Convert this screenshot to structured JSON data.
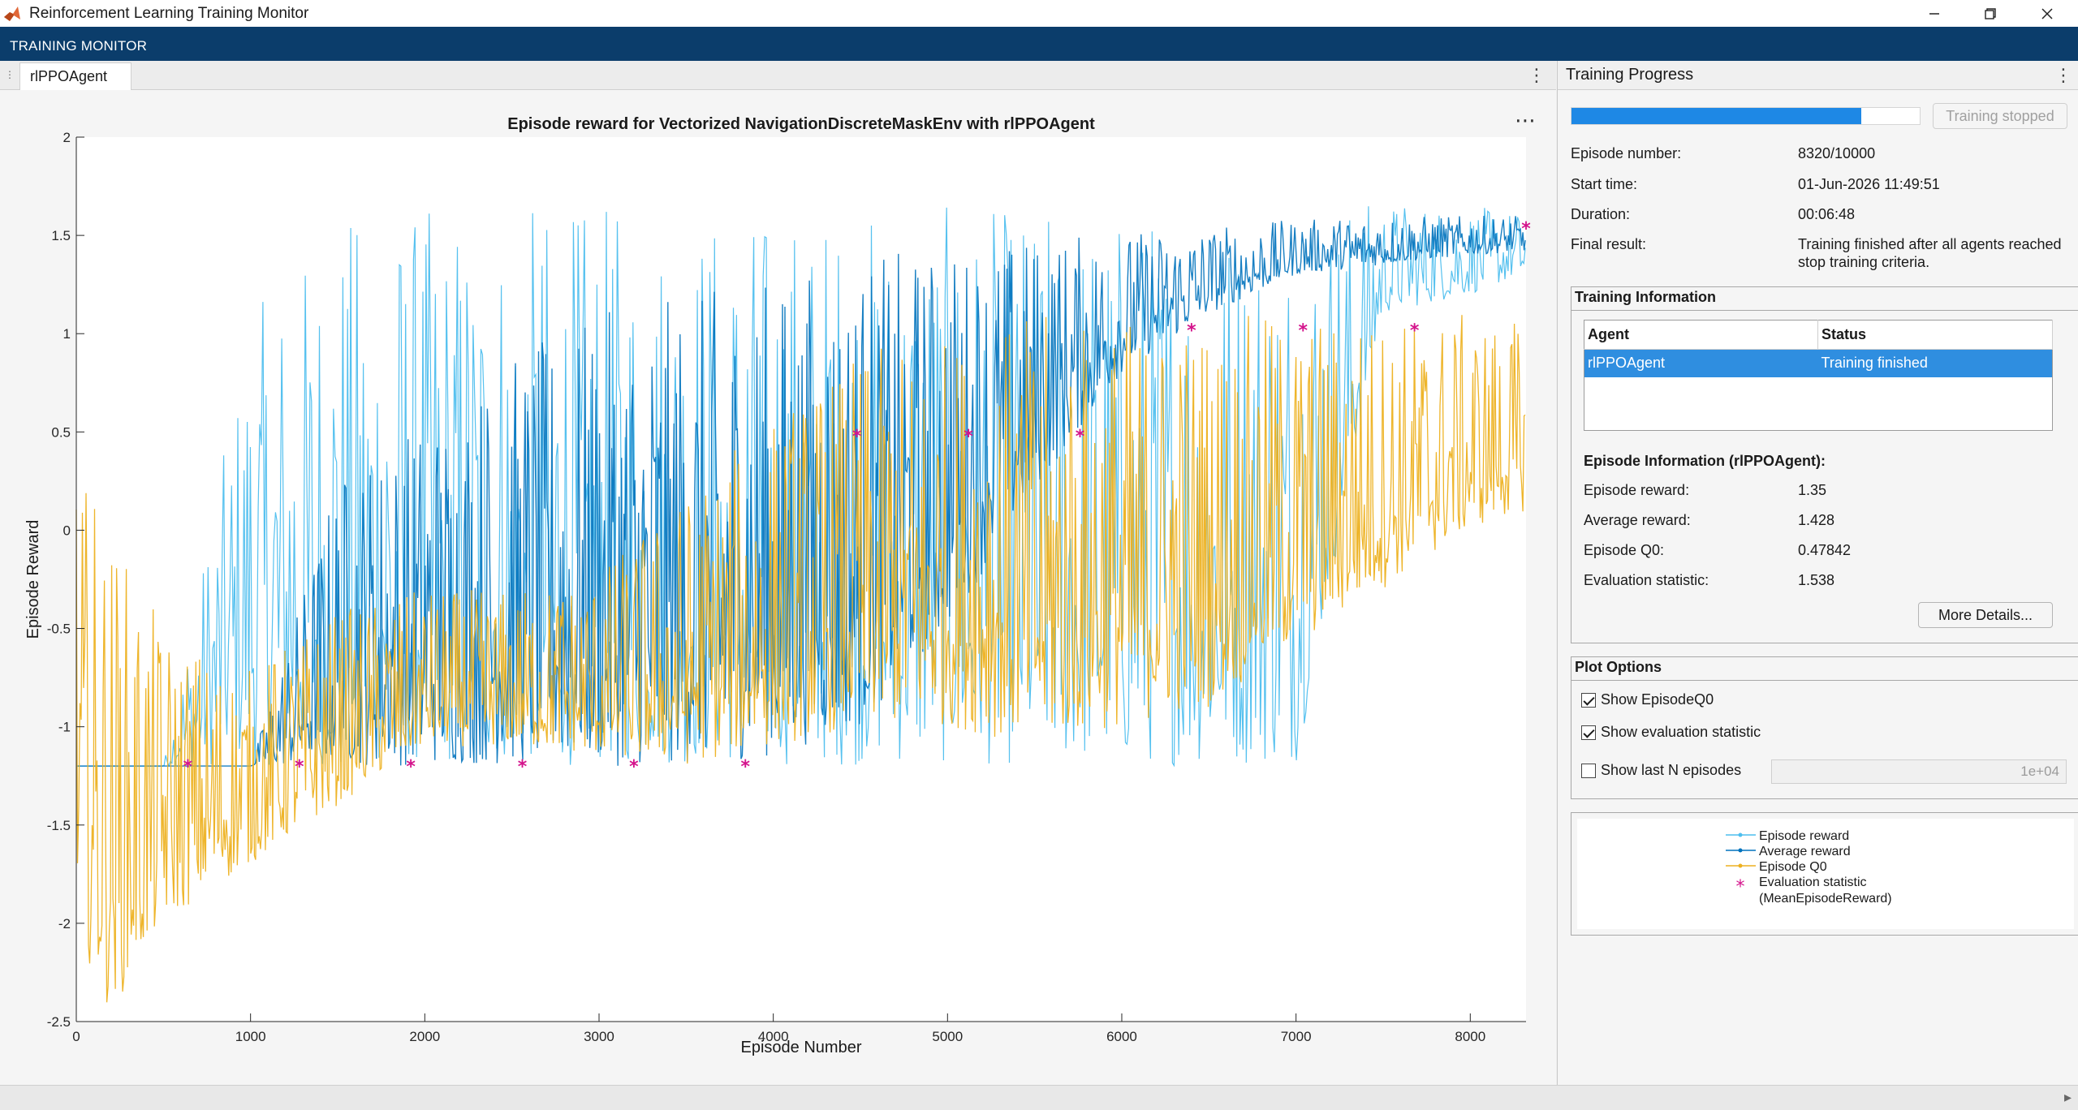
{
  "window": {
    "title": "Reinforcement Learning Training Monitor",
    "controls": [
      "minimize-icon",
      "restore-icon",
      "close-icon"
    ]
  },
  "toolstrip": {
    "tab_label": "TRAINING MONITOR"
  },
  "document": {
    "tab_label": "rlPPOAgent"
  },
  "chart_data": {
    "type": "line",
    "title": "Episode reward for Vectorized NavigationDiscreteMaskEnv with rlPPOAgent",
    "xlabel": "Episode Number",
    "ylabel": "Episode Reward",
    "xlim": [
      0,
      8320
    ],
    "ylim": [
      -2.5,
      2
    ],
    "xticks": [
      0,
      1000,
      2000,
      3000,
      4000,
      5000,
      6000,
      7000,
      8000
    ],
    "yticks": [
      -2.5,
      -2,
      -1.5,
      -1,
      -0.5,
      0,
      0.5,
      1,
      1.5,
      2
    ],
    "grid": false,
    "colors": {
      "episode_reward": "#4DBEEE",
      "average_reward": "#0072BD",
      "episode_q0": "#EDB120",
      "evaluation": "#D4148C"
    },
    "series": [
      {
        "name": "Episode reward",
        "x": [
          0,
          500,
          1000,
          1500,
          2000,
          2500,
          3000,
          3500,
          4000,
          4500,
          5000,
          5500,
          6000,
          6500,
          7000,
          7500,
          8000,
          8320
        ],
        "upper": [
          -1.2,
          -1.2,
          1.1,
          1.6,
          1.65,
          1.65,
          1.65,
          1.65,
          1.65,
          1.65,
          1.65,
          1.65,
          1.65,
          1.65,
          1.68,
          1.68,
          1.65,
          1.62
        ],
        "lower": [
          -1.2,
          -1.2,
          -1.2,
          -1.2,
          -1.2,
          -1.2,
          -1.2,
          -1.2,
          -1.2,
          -1.2,
          -1.2,
          -1.2,
          -1.2,
          -1.2,
          -1.2,
          1.1,
          1.2,
          1.3
        ]
      },
      {
        "name": "Average reward",
        "x": [
          0,
          1000,
          1500,
          2000,
          2500,
          3000,
          3500,
          4000,
          4500,
          5000,
          5500,
          6000,
          6500,
          7000,
          7500,
          8000,
          8320
        ],
        "upper": [
          -1.2,
          -1.2,
          0.3,
          0.6,
          0.9,
          1.1,
          1.2,
          1.3,
          1.4,
          1.45,
          1.5,
          1.52,
          1.55,
          1.58,
          1.6,
          1.6,
          1.6
        ],
        "lower": [
          -1.2,
          -1.2,
          -1.2,
          -1.2,
          -1.2,
          -1.2,
          -1.2,
          -1.15,
          -1.0,
          -0.5,
          0.2,
          0.8,
          1.1,
          1.3,
          1.35,
          1.4,
          1.42
        ]
      },
      {
        "name": "Episode Q0",
        "x": [
          0,
          100,
          200,
          500,
          1000,
          1500,
          2000,
          2500,
          3000,
          3500,
          4000,
          4500,
          5000,
          5500,
          6000,
          6500,
          7000,
          7500,
          8000,
          8320
        ],
        "upper": [
          0.3,
          0.2,
          0.0,
          -0.5,
          -0.7,
          -0.4,
          -0.3,
          -0.3,
          -0.2,
          0.2,
          0.6,
          0.9,
          1.0,
          1.1,
          1.1,
          1.1,
          1.1,
          1.1,
          1.1,
          1.05
        ],
        "lower": [
          -1.9,
          -2.3,
          -2.45,
          -2.0,
          -1.7,
          -1.4,
          -1.1,
          -1.1,
          -1.15,
          -1.2,
          -1.1,
          -1.0,
          -1.0,
          -1.1,
          -1.0,
          -0.9,
          -0.6,
          -0.3,
          0.0,
          0.1
        ]
      },
      {
        "name": "Evaluation statistic (MeanEpisodeReward)",
        "x": [
          640,
          1280,
          1920,
          2560,
          3200,
          3840,
          4480,
          5120,
          5760,
          6400,
          7040,
          7680,
          8320
        ],
        "y": [
          -1.2,
          -1.2,
          -1.2,
          -1.2,
          -1.2,
          -1.2,
          0.48,
          0.48,
          0.48,
          1.02,
          1.02,
          1.02,
          1.538
        ]
      }
    ],
    "legend": {
      "position": "right-panel",
      "entries": [
        "Episode reward",
        "Average reward",
        "Episode Q0",
        "Evaluation statistic",
        "(MeanEpisodeReward)"
      ]
    }
  },
  "progress": {
    "header": "Training Progress",
    "fraction": 0.832,
    "stop_button": "Training stopped",
    "rows": [
      {
        "label": "Episode number:",
        "value": "8320/10000"
      },
      {
        "label": "Start time:",
        "value": "01-Jun-2026 11:49:51"
      },
      {
        "label": "Duration:",
        "value": "00:06:48"
      },
      {
        "label": "Final result:",
        "value": "Training finished after all agents reached",
        "value2": "stop training criteria."
      }
    ]
  },
  "training_info": {
    "title": "Training Information",
    "columns": [
      "Agent",
      "Status"
    ],
    "rows": [
      {
        "agent": "rlPPOAgent",
        "status": "Training finished"
      }
    ],
    "episode_info_title": "Episode Information (rlPPOAgent):",
    "episode_info": [
      {
        "label": "Episode reward:",
        "value": "1.35"
      },
      {
        "label": "Average reward:",
        "value": "1.428"
      },
      {
        "label": "Episode Q0:",
        "value": "0.47842"
      },
      {
        "label": "Evaluation statistic:",
        "value": "1.538"
      }
    ],
    "more_details": "More Details..."
  },
  "plot_options": {
    "title": "Plot Options",
    "show_q0": "Show EpisodeQ0",
    "show_eval": "Show evaluation statistic",
    "show_last_n": "Show last N episodes",
    "last_n_value": "1e+04",
    "show_q0_checked": true,
    "show_eval_checked": true,
    "show_last_n_checked": false
  }
}
